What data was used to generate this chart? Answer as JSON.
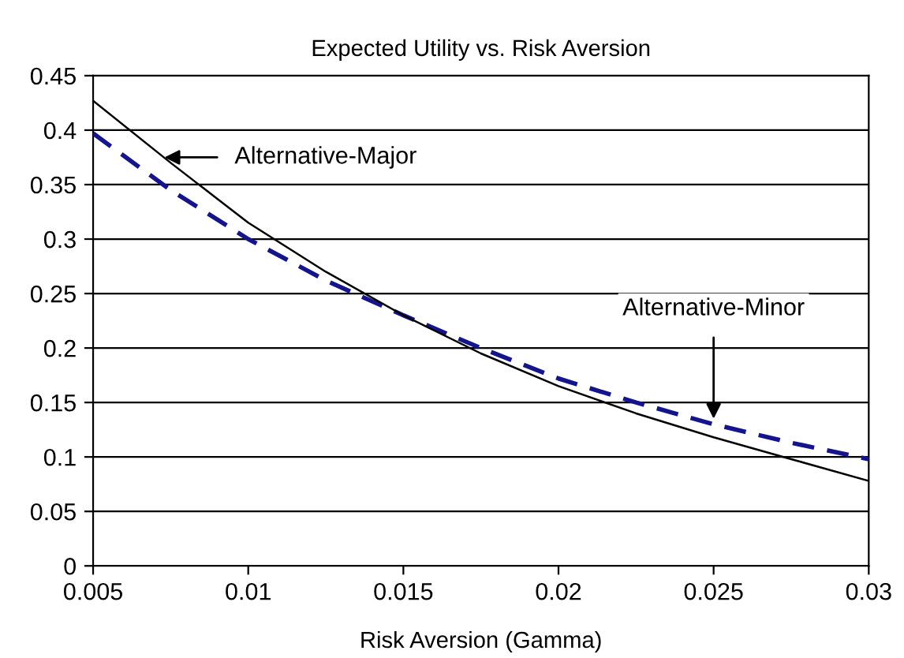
{
  "chart_data": {
    "type": "line",
    "title": "Expected Utility vs. Risk Aversion",
    "xlabel": "Risk Aversion (Gamma)",
    "x": [
      0.005,
      0.0075,
      0.01,
      0.0125,
      0.015,
      0.0175,
      0.02,
      0.0225,
      0.025,
      0.0275,
      0.03
    ],
    "series": [
      {
        "color": "#000000",
        "line_style": "solid",
        "values": [
          0.427,
          0.37,
          0.315,
          0.27,
          0.23,
          0.195,
          0.165,
          0.14,
          0.118,
          0.098,
          0.078
        ]
      },
      {
        "color": "#14148c",
        "line_style": "dashed",
        "values": [
          0.397,
          0.345,
          0.3,
          0.262,
          0.23,
          0.2,
          0.172,
          0.15,
          0.13,
          0.113,
          0.098
        ]
      }
    ],
    "annotations": [
      {
        "text": "Alternative-Major",
        "x": 0.0073,
        "y": 0.375
      },
      {
        "text": "Alternative-Minor",
        "x": 0.025,
        "y": 0.135
      }
    ],
    "xlim": [
      0.005,
      0.03
    ],
    "xticks": [
      0.005,
      0.01,
      0.015,
      0.02,
      0.025,
      0.03
    ],
    "ylim": [
      0,
      0.45
    ],
    "yticks": [
      0,
      0.05,
      0.1,
      0.15,
      0.2,
      0.25,
      0.3,
      0.35,
      0.4,
      0.45
    ],
    "grid": "y",
    "legend": false,
    "marker": "none"
  }
}
